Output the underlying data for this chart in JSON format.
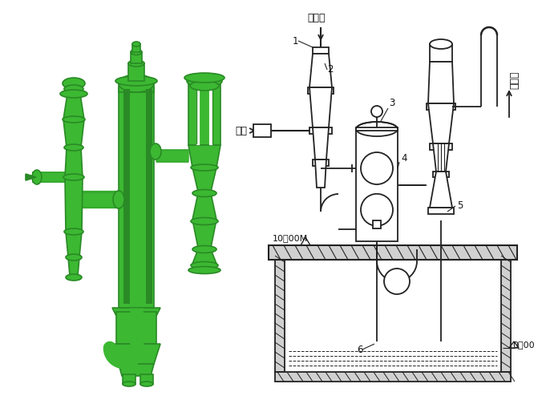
{
  "bg_color": "#ffffff",
  "green": "#3cb832",
  "dark_green": "#2a8a26",
  "shadow_green": "#1e6b1a",
  "lc": "#1a1a1a",
  "labels": {
    "shengqiqi": "生蔡气",
    "chouqi": "抽气",
    "yalishu": "压力水",
    "num1": "1",
    "num2": "2",
    "num3": "3",
    "num4": "4",
    "num5": "5",
    "num6": "6",
    "height_10": "10．00M",
    "height_0": "0．00"
  }
}
